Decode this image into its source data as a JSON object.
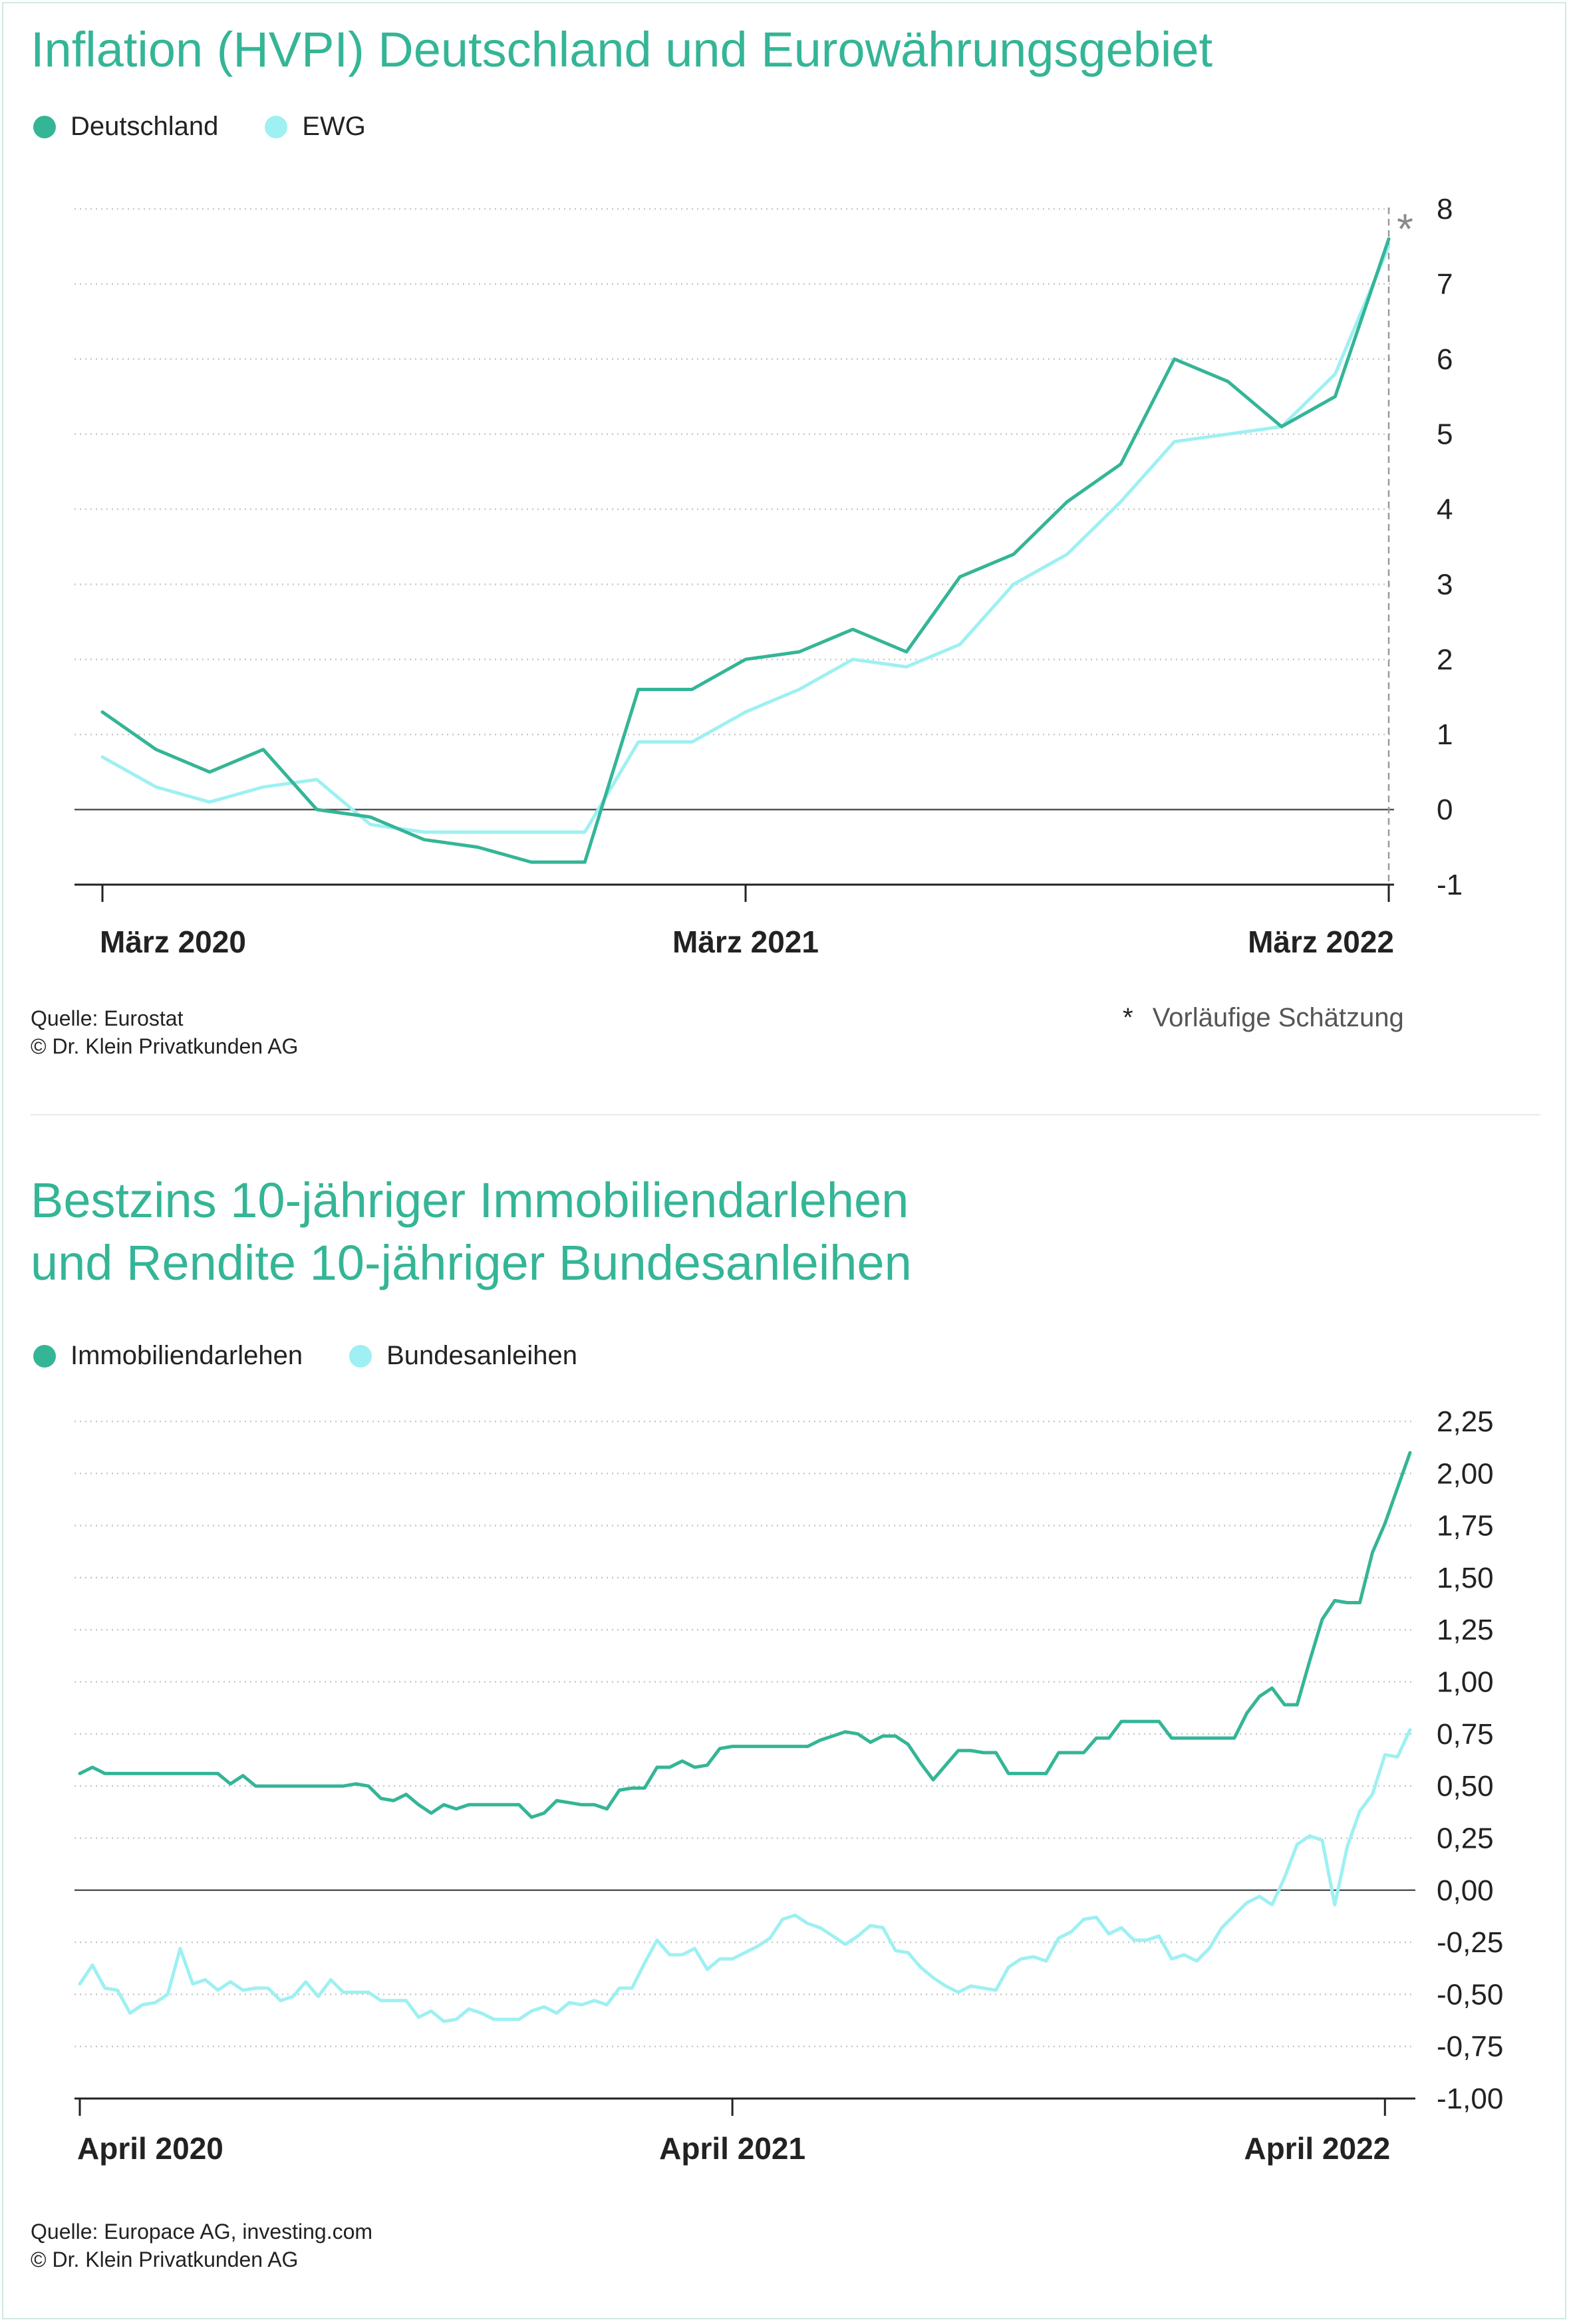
{
  "colors": {
    "primary": "#34b596",
    "secondary": "#9ef0f2",
    "grid": "#c8c8c8",
    "axis": "#222222",
    "zero": "#555555",
    "title": "#34b596"
  },
  "top": {
    "title": "Inflation (HVPI) Deutschland und Eurowährungsgebiet",
    "source_line1": "Quelle: Eurostat",
    "source_line2": "© Dr. Klein Privatkunden AG",
    "note_star": "*",
    "note_text": "Vorläufige Schätzung"
  },
  "bottom": {
    "title_line1": "Bestzins 10-jähriger Immobiliendarlehen",
    "title_line2": "und Rendite 10-jähriger Bundesanleihen",
    "source_line1": "Quelle: Europace AG, investing.com",
    "source_line2": "© Dr. Klein Privatkunden AG"
  },
  "chart_data": [
    {
      "type": "line",
      "title": "Inflation (HVPI) Deutschland und Eurowährungsgebiet",
      "legend": "top-left",
      "grid": true,
      "ylim": [
        -1,
        8
      ],
      "y_ticks": [
        "-1",
        "0",
        "1",
        "2",
        "3",
        "4",
        "5",
        "6",
        "7",
        "8"
      ],
      "x_ticks": [
        "März 2020",
        "März 2021",
        "März 2022"
      ],
      "x_tick_index": [
        0,
        12,
        24
      ],
      "marker_last": "*",
      "series": [
        {
          "name": "Deutschland",
          "color": "#34b596",
          "values": [
            1.3,
            0.8,
            0.5,
            0.8,
            0.0,
            -0.1,
            -0.4,
            -0.5,
            -0.7,
            -0.7,
            1.6,
            1.6,
            2.0,
            2.1,
            2.4,
            2.1,
            3.1,
            3.4,
            4.1,
            4.6,
            6.0,
            5.7,
            5.1,
            5.5,
            7.6
          ]
        },
        {
          "name": "EWG",
          "color": "#9ef0f2",
          "values": [
            0.7,
            0.3,
            0.1,
            0.3,
            0.4,
            -0.2,
            -0.3,
            -0.3,
            -0.3,
            -0.3,
            0.9,
            0.9,
            1.3,
            1.6,
            2.0,
            1.9,
            2.2,
            3.0,
            3.4,
            4.1,
            4.9,
            5.0,
            5.1,
            5.8,
            7.5
          ]
        }
      ]
    },
    {
      "type": "line",
      "title": "Bestzins 10-jähriger Immobiliendarlehen und Rendite 10-jähriger Bundesanleihen",
      "legend": "top-left",
      "grid": true,
      "ylim": [
        -1.0,
        2.25
      ],
      "y_ticks": [
        "-1,00",
        "-0,75",
        "-0,50",
        "-0,25",
        "0,00",
        "0,25",
        "0,50",
        "0,75",
        "1,00",
        "1,25",
        "1,50",
        "1,75",
        "2,00",
        "2,25"
      ],
      "x_ticks": [
        "April 2020",
        "April 2021",
        "April 2022"
      ],
      "x_tick_index": [
        0,
        52,
        104
      ],
      "series": [
        {
          "name": "Immobiliendarlehen",
          "color": "#34b596",
          "values": [
            0.56,
            0.59,
            0.56,
            0.56,
            0.56,
            0.56,
            0.56,
            0.56,
            0.56,
            0.56,
            0.56,
            0.56,
            0.51,
            0.55,
            0.5,
            0.5,
            0.5,
            0.5,
            0.5,
            0.5,
            0.5,
            0.5,
            0.51,
            0.5,
            0.44,
            0.43,
            0.46,
            0.41,
            0.37,
            0.41,
            0.39,
            0.41,
            0.41,
            0.41,
            0.41,
            0.41,
            0.35,
            0.37,
            0.43,
            0.42,
            0.41,
            0.41,
            0.39,
            0.48,
            0.49,
            0.49,
            0.59,
            0.59,
            0.62,
            0.59,
            0.6,
            0.68,
            0.69,
            0.69,
            0.69,
            0.69,
            0.69,
            0.69,
            0.69,
            0.72,
            0.74,
            0.76,
            0.75,
            0.71,
            0.74,
            0.74,
            0.7,
            0.61,
            0.53,
            0.6,
            0.67,
            0.67,
            0.66,
            0.66,
            0.56,
            0.56,
            0.56,
            0.56,
            0.66,
            0.66,
            0.66,
            0.73,
            0.73,
            0.81,
            0.81,
            0.81,
            0.81,
            0.73,
            0.73,
            0.73,
            0.73,
            0.73,
            0.73,
            0.85,
            0.93,
            0.97,
            0.89,
            0.89,
            1.1,
            1.3,
            1.39,
            1.38,
            1.38,
            1.62,
            1.76,
            1.93,
            2.1
          ]
        },
        {
          "name": "Bundesanleihen",
          "color": "#9ef0f2",
          "values": [
            -0.45,
            -0.36,
            -0.47,
            -0.48,
            -0.59,
            -0.55,
            -0.54,
            -0.5,
            -0.28,
            -0.45,
            -0.43,
            -0.48,
            -0.44,
            -0.48,
            -0.47,
            -0.47,
            -0.53,
            -0.51,
            -0.44,
            -0.51,
            -0.43,
            -0.49,
            -0.49,
            -0.49,
            -0.53,
            -0.53,
            -0.53,
            -0.61,
            -0.58,
            -0.63,
            -0.62,
            -0.57,
            -0.59,
            -0.62,
            -0.62,
            -0.62,
            -0.58,
            -0.56,
            -0.59,
            -0.54,
            -0.55,
            -0.53,
            -0.55,
            -0.47,
            -0.47,
            -0.35,
            -0.24,
            -0.31,
            -0.31,
            -0.28,
            -0.38,
            -0.33,
            -0.33,
            -0.3,
            -0.27,
            -0.23,
            -0.14,
            -0.12,
            -0.16,
            -0.18,
            -0.22,
            -0.26,
            -0.22,
            -0.17,
            -0.18,
            -0.29,
            -0.3,
            -0.37,
            -0.42,
            -0.46,
            -0.49,
            -0.46,
            -0.47,
            -0.48,
            -0.37,
            -0.33,
            -0.32,
            -0.34,
            -0.23,
            -0.2,
            -0.14,
            -0.13,
            -0.21,
            -0.18,
            -0.24,
            -0.24,
            -0.22,
            -0.33,
            -0.31,
            -0.34,
            -0.28,
            -0.18,
            -0.12,
            -0.06,
            -0.03,
            -0.07,
            0.06,
            0.22,
            0.26,
            0.24,
            -0.07,
            0.21,
            0.38,
            0.46,
            0.65,
            0.64,
            0.77
          ]
        }
      ]
    }
  ]
}
